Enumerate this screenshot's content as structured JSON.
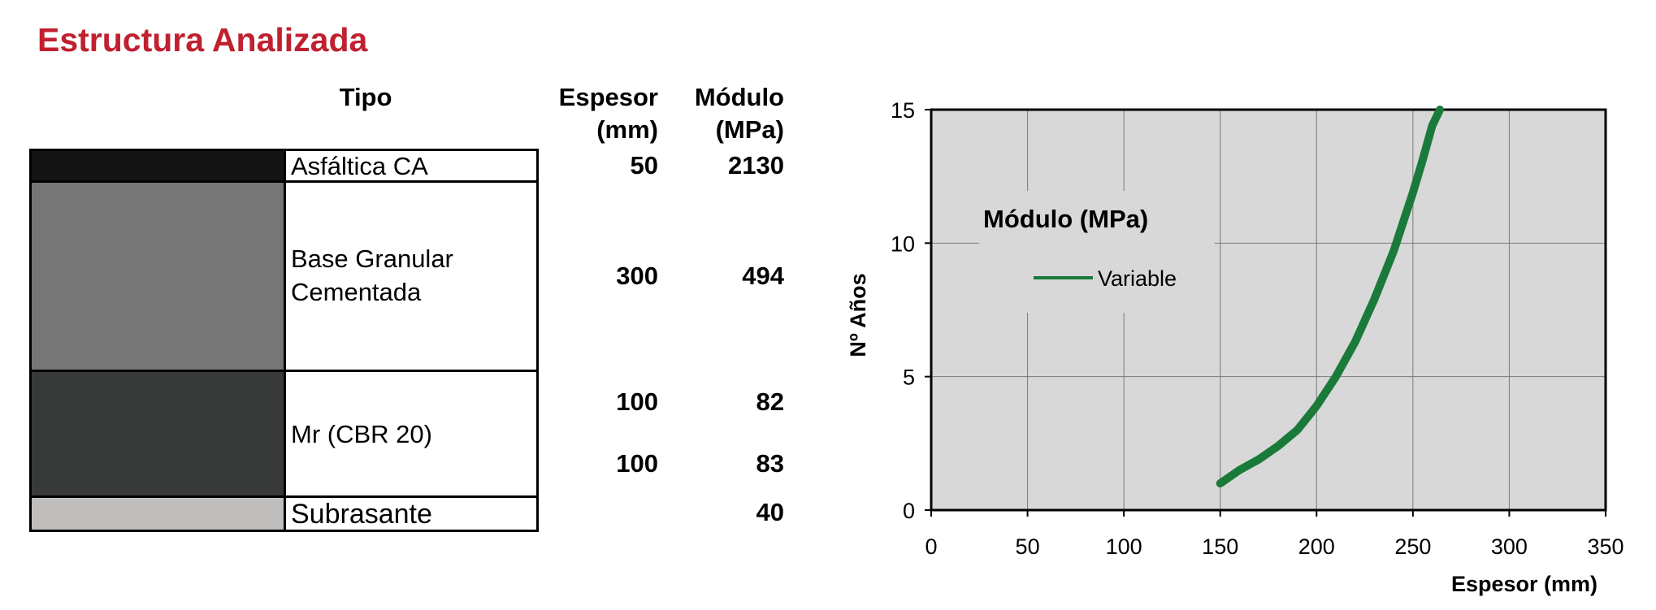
{
  "title": "Estructura Analizada",
  "table": {
    "headers": {
      "tipo": "Tipo",
      "espesor": [
        "Espesor",
        "(mm)"
      ],
      "modulo": [
        "Módulo",
        "(MPa)"
      ]
    },
    "layers": [
      {
        "name": [
          "Asfáltica CA"
        ],
        "color": "#141414",
        "values": [
          {
            "espesor": "50",
            "modulo": "2130"
          }
        ]
      },
      {
        "name": [
          "Base Granular",
          "Cementada"
        ],
        "color": "#767676",
        "values": [
          {
            "espesor": "300",
            "modulo": "494"
          }
        ]
      },
      {
        "name": [
          "Mr (CBR 20)"
        ],
        "color": "#383a39",
        "values": [
          {
            "espesor": "100",
            "modulo": "82"
          },
          {
            "espesor": "100",
            "modulo": "83"
          }
        ]
      },
      {
        "name": [
          "Subrasante"
        ],
        "color": "#bfbebc",
        "values": [
          {
            "espesor": "",
            "modulo": "40"
          }
        ]
      }
    ]
  },
  "chart_data": {
    "type": "line",
    "title": "",
    "xlabel": "Espesor (mm)",
    "ylabel": "Nº Años",
    "xlim": [
      0,
      350
    ],
    "ylim": [
      0,
      15
    ],
    "xticks": [
      "0",
      "50",
      "100",
      "150",
      "200",
      "250",
      "300",
      "350"
    ],
    "yticks": [
      "0",
      "5",
      "10",
      "15"
    ],
    "grid": true,
    "legend": {
      "title": "Módulo (MPa)",
      "placement": "top-left"
    },
    "series": [
      {
        "name": "Variable",
        "color": "#1a7a3a",
        "x": [
          150,
          160,
          170,
          180,
          190,
          200,
          210,
          220,
          230,
          240,
          250,
          255,
          260,
          264
        ],
        "y": [
          1.0,
          1.5,
          1.9,
          2.4,
          3.0,
          3.9,
          5.0,
          6.3,
          7.9,
          9.7,
          11.9,
          13.1,
          14.4,
          15.0
        ]
      }
    ]
  }
}
